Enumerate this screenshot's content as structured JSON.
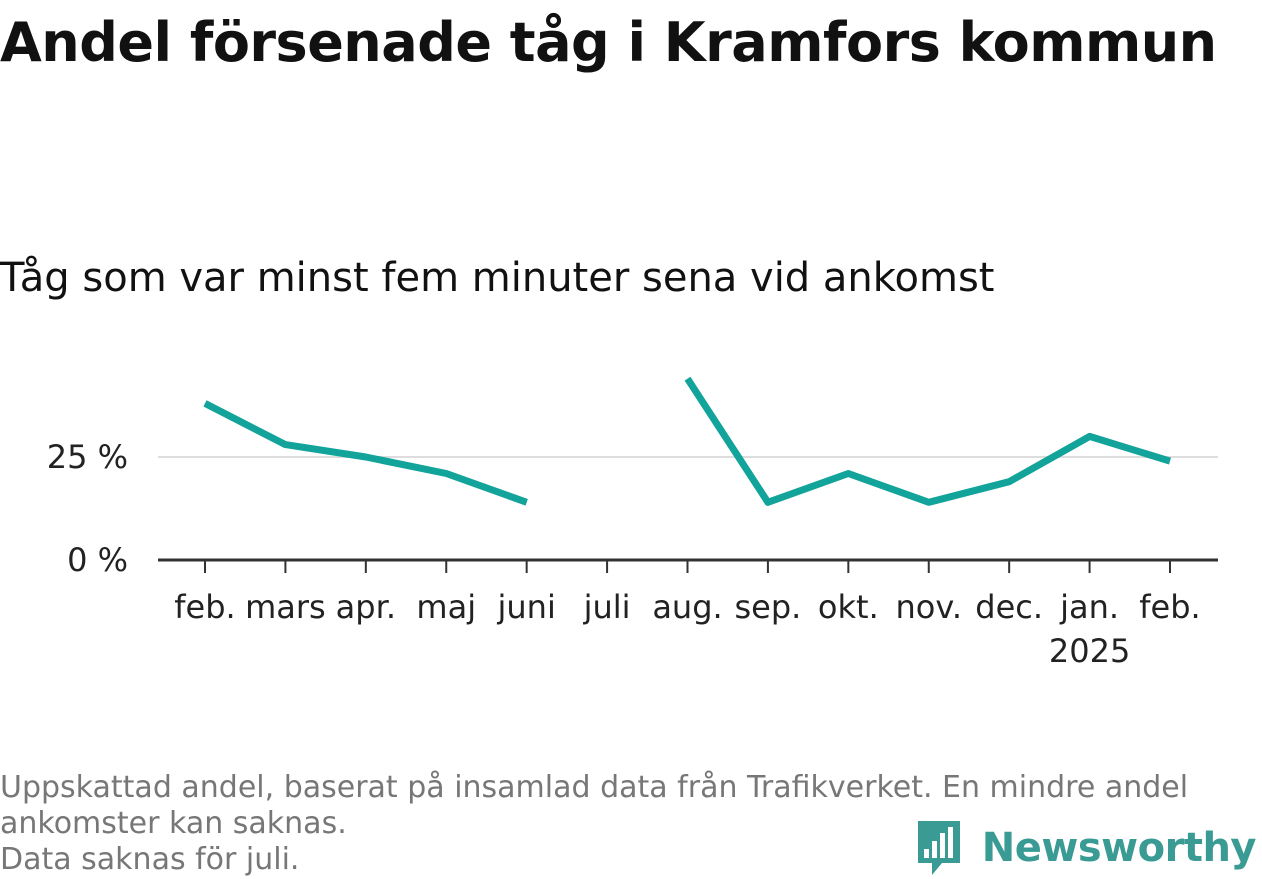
{
  "title": "Andel försenade tåg i Kramfors kommun",
  "subtitle": "Tåg som var minst fem minuter sena vid ankomst",
  "footer": {
    "note_line1": "Uppskattad andel, baserat på insamlad data från Trafikverket. En mindre andel",
    "note_line2": "ankomster kan saknas.",
    "note_line3": "Data saknas för juli."
  },
  "brand": {
    "name": "Newsworthy",
    "icon": "newsworthy-logo-icon"
  },
  "colors": {
    "line": "#12a39a",
    "axis": "#333333",
    "grid": "#dddddd",
    "brand": "#3a9a94"
  },
  "chart_data": {
    "type": "line",
    "title": "Andel försenade tåg i Kramfors kommun",
    "subtitle": "Tåg som var minst fem minuter sena vid ankomst",
    "categories": [
      "feb.",
      "mars",
      "apr.",
      "maj",
      "juni",
      "juli",
      "aug.",
      "sep.",
      "okt.",
      "nov.",
      "dec.",
      "jan.",
      "feb."
    ],
    "category_sublabels": [
      "",
      "",
      "",
      "",
      "",
      "",
      "",
      "",
      "",
      "",
      "",
      "2025",
      ""
    ],
    "values": [
      38,
      28,
      25,
      21,
      14,
      null,
      44,
      14,
      21,
      14,
      19,
      30,
      24
    ],
    "ylim": [
      0,
      50
    ],
    "yticks": [
      0,
      25
    ],
    "ytick_labels": [
      "0 %",
      "25 %"
    ],
    "grid": true,
    "legend": "none"
  }
}
